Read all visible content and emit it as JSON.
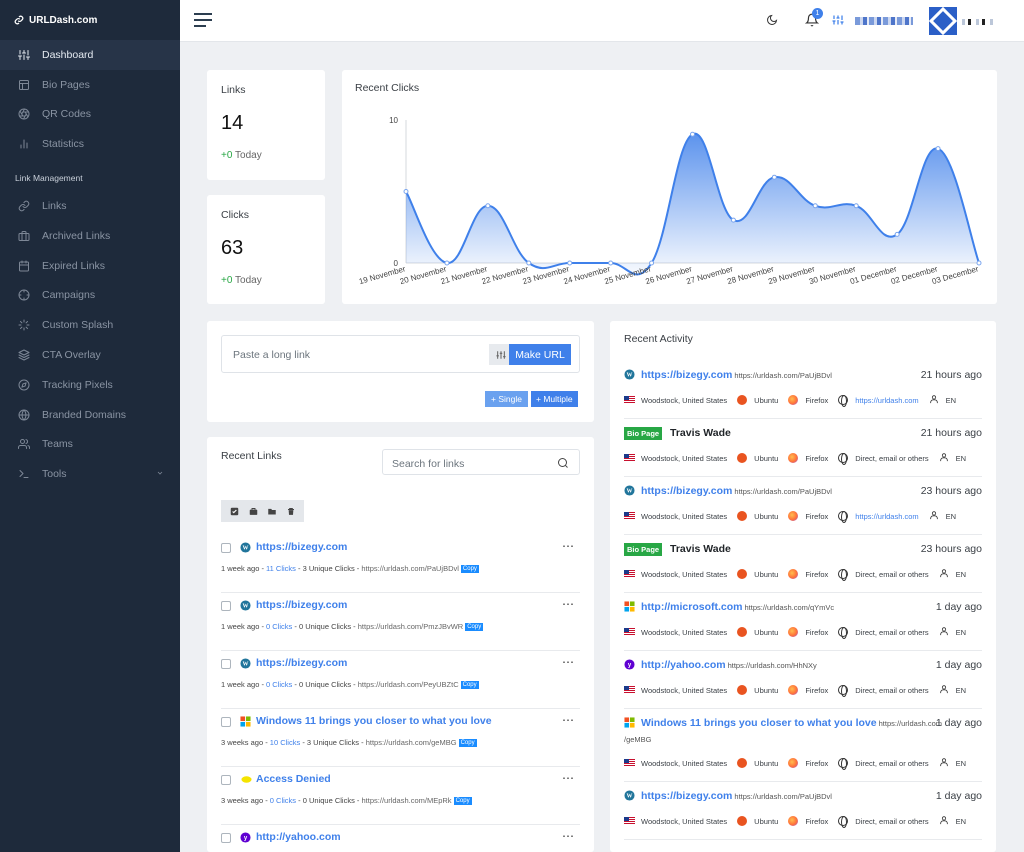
{
  "brand": "URLDash.com",
  "sidebar": {
    "items": [
      {
        "label": "Dashboard",
        "icon": "sliders-icon",
        "active": true
      },
      {
        "label": "Bio Pages",
        "icon": "layout-icon"
      },
      {
        "label": "QR Codes",
        "icon": "aperture-icon"
      },
      {
        "label": "Statistics",
        "icon": "bar-chart-icon"
      }
    ],
    "section": "Link Management",
    "items2": [
      {
        "label": "Links",
        "icon": "link-icon"
      },
      {
        "label": "Archived Links",
        "icon": "briefcase-icon"
      },
      {
        "label": "Expired Links",
        "icon": "calendar-icon"
      },
      {
        "label": "Campaigns",
        "icon": "crosshair-icon"
      },
      {
        "label": "Custom Splash",
        "icon": "loader-icon"
      },
      {
        "label": "CTA Overlay",
        "icon": "layers-icon"
      },
      {
        "label": "Tracking Pixels",
        "icon": "compass-icon"
      },
      {
        "label": "Branded Domains",
        "icon": "globe-icon"
      },
      {
        "label": "Teams",
        "icon": "users-icon"
      },
      {
        "label": "Tools",
        "icon": "terminal-icon"
      }
    ]
  },
  "topbar": {
    "notifications": "1"
  },
  "stats": {
    "links": {
      "label": "Links",
      "value": "14",
      "delta": "+0",
      "delta_suffix": "Today"
    },
    "clicks": {
      "label": "Clicks",
      "value": "63",
      "delta": "+0",
      "delta_suffix": "Today"
    }
  },
  "recent_clicks": {
    "title": "Recent Clicks",
    "chart_data": {
      "type": "area",
      "title": "Recent Clicks",
      "categories": [
        "19 November",
        "20 November",
        "21 November",
        "22 November",
        "23 November",
        "24 November",
        "25 November",
        "26 November",
        "27 November",
        "28 November",
        "29 November",
        "30 November",
        "01 December",
        "02 December",
        "03 December"
      ],
      "series": [
        {
          "values": [
            5,
            0,
            4,
            0,
            0,
            0,
            0,
            9,
            3,
            6,
            4,
            4,
            2,
            8,
            0
          ]
        }
      ],
      "ylim": [
        0,
        10
      ],
      "y_ticks": [
        "10",
        "0"
      ],
      "color": "#3f80ea"
    }
  },
  "shortener": {
    "placeholder": "Paste a long link",
    "button": "Make URL",
    "single": "+ Single",
    "multiple": "+ Multiple"
  },
  "recent_links": {
    "title": "Recent Links",
    "search_placeholder": "Search for links",
    "items": [
      {
        "title": "https://bizegy.com",
        "fav": "wordpress",
        "age": "1 week ago",
        "clicks": "11 Clicks",
        "unique": "3 Unique Clicks",
        "short": "https://urldash.com/PaUjBDvl",
        "copy": "Copy"
      },
      {
        "title": "https://bizegy.com",
        "fav": "wordpress",
        "age": "1 week ago",
        "clicks": "0 Clicks",
        "unique": "0 Unique Clicks",
        "short": "https://urldash.com/PmzJBvWR",
        "copy": "Copy"
      },
      {
        "title": "https://bizegy.com",
        "fav": "wordpress",
        "age": "1 week ago",
        "clicks": "0 Clicks",
        "unique": "0 Unique Clicks",
        "short": "https://urldash.com/PeyUBZtC",
        "copy": "Copy"
      },
      {
        "title": "Windows 11 brings you closer to what you love",
        "fav": "microsoft",
        "age": "3 weeks ago",
        "clicks": "10 Clicks",
        "unique": "3 Unique Clicks",
        "short": "https://urldash.com/geMBG",
        "copy": "Copy"
      },
      {
        "title": "Access Denied",
        "fav": "yellow",
        "age": "3 weeks ago",
        "clicks": "0 Clicks",
        "unique": "0 Unique Clicks",
        "short": "https://urldash.com/MEpRk",
        "copy": "Copy"
      },
      {
        "title": "http://yahoo.com",
        "fav": "yahoo",
        "age": "",
        "clicks": "",
        "unique": "",
        "short": "",
        "copy": ""
      }
    ]
  },
  "recent_activity": {
    "title": "Recent Activity",
    "items": [
      {
        "kind": "link",
        "fav": "wordpress",
        "title": "https://bizegy.com",
        "url": "https://urldash.com/PaUjBDvl",
        "time": "21 hours ago",
        "location": "Woodstock, United States",
        "os": "Ubuntu",
        "browser": "Firefox",
        "referrer": "https://urldash.com",
        "ref_link": true,
        "lang": "EN"
      },
      {
        "kind": "bio",
        "badge": "Bio Page",
        "title": "Travis Wade",
        "url": "",
        "time": "21 hours ago",
        "location": "Woodstock, United States",
        "os": "Ubuntu",
        "browser": "Firefox",
        "referrer": "Direct, email or others",
        "ref_link": false,
        "lang": "EN"
      },
      {
        "kind": "link",
        "fav": "wordpress",
        "title": "https://bizegy.com",
        "url": "https://urldash.com/PaUjBDvl",
        "time": "23 hours ago",
        "location": "Woodstock, United States",
        "os": "Ubuntu",
        "browser": "Firefox",
        "referrer": "https://urldash.com",
        "ref_link": true,
        "lang": "EN"
      },
      {
        "kind": "bio",
        "badge": "Bio Page",
        "title": "Travis Wade",
        "url": "",
        "time": "23 hours ago",
        "location": "Woodstock, United States",
        "os": "Ubuntu",
        "browser": "Firefox",
        "referrer": "Direct, email or others",
        "ref_link": false,
        "lang": "EN"
      },
      {
        "kind": "link",
        "fav": "microsoft",
        "title": "http://microsoft.com",
        "url": "https://urldash.com/qYmVc",
        "time": "1 day ago",
        "location": "Woodstock, United States",
        "os": "Ubuntu",
        "browser": "Firefox",
        "referrer": "Direct, email or others",
        "ref_link": false,
        "lang": "EN"
      },
      {
        "kind": "link",
        "fav": "yahoo",
        "title": "http://yahoo.com",
        "url": "https://urldash.com/HhNXy",
        "time": "1 day ago",
        "location": "Woodstock, United States",
        "os": "Ubuntu",
        "browser": "Firefox",
        "referrer": "Direct, email or others",
        "ref_link": false,
        "lang": "EN"
      },
      {
        "kind": "link",
        "fav": "microsoft",
        "title": "Windows 11 brings you closer to what you love",
        "url": "https://urldash.com",
        "url2": "/geMBG",
        "time": "1 day ago",
        "location": "Woodstock, United States",
        "os": "Ubuntu",
        "browser": "Firefox",
        "referrer": "Direct, email or others",
        "ref_link": false,
        "lang": "EN"
      },
      {
        "kind": "link",
        "fav": "wordpress",
        "title": "https://bizegy.com",
        "url": "https://urldash.com/PaUjBDvl",
        "time": "1 day ago",
        "location": "Woodstock, United States",
        "os": "Ubuntu",
        "browser": "Firefox",
        "referrer": "Direct, email or others",
        "ref_link": false,
        "lang": "EN"
      }
    ]
  }
}
